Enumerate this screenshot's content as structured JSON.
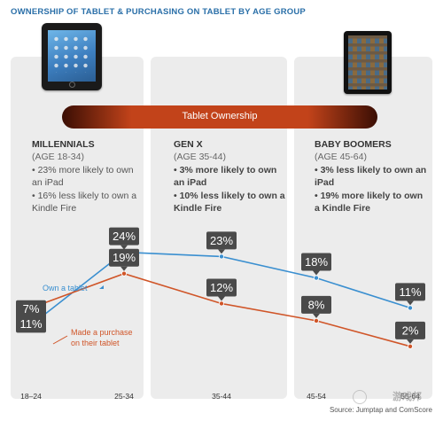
{
  "title": "OWNERSHIP OF TABLET & PURCHASING ON TABLET BY AGE GROUP",
  "band_label": "Tablet Ownership",
  "columns": [
    {
      "heading": "MILLENNIALS",
      "age": "(AGE 18-34)",
      "bullets": [
        "• 23% more likely to own an iPad",
        "• 16% less likely to own a Kindle Fire"
      ]
    },
    {
      "heading": "GEN X",
      "age": "(AGE 35-44)",
      "bullets": [
        "• 3% more likely to own an iPad",
        "• 10% less likely to own a Kindle Fire"
      ]
    },
    {
      "heading": "BABY BOOMERS",
      "age": "(AGE 45-64)",
      "bullets": [
        "• 3% less likely to own an iPad",
        "• 19% more likely to own a Kindle Fire"
      ]
    }
  ],
  "source": "Source: Jumptap and ComScore",
  "watermark": "游戏邦",
  "colors": {
    "tablet_series": "#3a8fd0",
    "purchase_series": "#d05528",
    "label_box": "#4a4a4a",
    "panel": "#ececec",
    "title": "#2a6fa8"
  },
  "chart_data": {
    "type": "line",
    "categories": [
      "18–24",
      "25-34",
      "35-44",
      "45-54",
      "55-64"
    ],
    "series": [
      {
        "name": "Own a tablet",
        "values": [
          7,
          24,
          23,
          18,
          11
        ],
        "labels": [
          "7%",
          "24%",
          "23%",
          "18%",
          "11%"
        ]
      },
      {
        "name": "Made a purchase on their tablet",
        "values": [
          11,
          19,
          12,
          8,
          2
        ],
        "labels": [
          "11%",
          "19%",
          "12%",
          "8%",
          "2%"
        ]
      }
    ],
    "title": "OWNERSHIP OF TABLET & PURCHASING ON TABLET BY AGE GROUP",
    "xlabel": "",
    "ylabel": "",
    "legend": "inline labels",
    "grid": false
  }
}
